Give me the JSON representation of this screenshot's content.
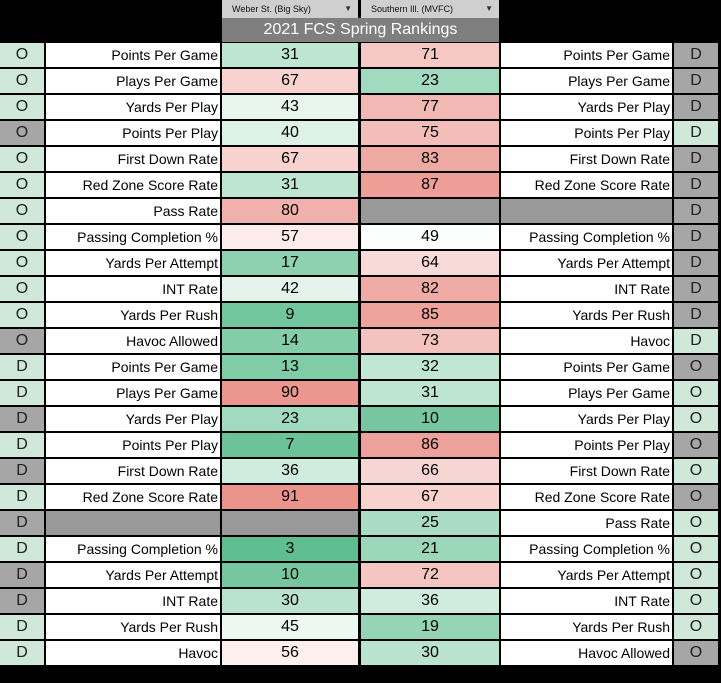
{
  "header": {
    "left_team": "Weber St. (Big Sky)",
    "right_team": "Southern Ill. (MVFC)",
    "title": "2021 FCS Spring Rankings",
    "dropdown_icon": "triangle-down-icon"
  },
  "colors": {
    "side_green": "#cfe8da",
    "side_grey": "#a6a6a6",
    "blank_grey": "#999999",
    "good_green": "#57bb8a",
    "bad_red": "#e67c73",
    "neutral": "#ffffff"
  },
  "rows": [
    {
      "ls": "O",
      "lsg": false,
      "ll": "Points Per Game",
      "lv": "31",
      "rv": "71",
      "rl": "Points Per Game",
      "rs": "D",
      "rsg": true
    },
    {
      "ls": "O",
      "lsg": false,
      "ll": "Plays Per Game",
      "lv": "67",
      "rv": "23",
      "rl": "Plays Per Game",
      "rs": "D",
      "rsg": true
    },
    {
      "ls": "O",
      "lsg": false,
      "ll": "Yards Per Play",
      "lv": "43",
      "rv": "77",
      "rl": "Yards Per Play",
      "rs": "D",
      "rsg": true
    },
    {
      "ls": "O",
      "lsg": true,
      "ll": "Points Per Play",
      "lv": "40",
      "rv": "75",
      "rl": "Points Per Play",
      "rs": "D",
      "rsg": false
    },
    {
      "ls": "O",
      "lsg": false,
      "ll": "First Down Rate",
      "lv": "67",
      "rv": "83",
      "rl": "First Down Rate",
      "rs": "D",
      "rsg": true
    },
    {
      "ls": "O",
      "lsg": false,
      "ll": "Red Zone Score Rate",
      "lv": "31",
      "rv": "87",
      "rl": "Red Zone Score Rate",
      "rs": "D",
      "rsg": true
    },
    {
      "ls": "O",
      "lsg": false,
      "ll": "Pass Rate",
      "lv": "80",
      "rv": "",
      "rl": "",
      "rs": "D",
      "rsg": true
    },
    {
      "ls": "O",
      "lsg": false,
      "ll": "Passing Completion %",
      "lv": "57",
      "rv": "49",
      "rl": "Passing Completion %",
      "rs": "D",
      "rsg": true
    },
    {
      "ls": "O",
      "lsg": false,
      "ll": "Yards Per Attempt",
      "lv": "17",
      "rv": "64",
      "rl": "Yards Per Attempt",
      "rs": "D",
      "rsg": true
    },
    {
      "ls": "O",
      "lsg": false,
      "ll": "INT Rate",
      "lv": "42",
      "rv": "82",
      "rl": "INT Rate",
      "rs": "D",
      "rsg": true
    },
    {
      "ls": "O",
      "lsg": false,
      "ll": "Yards Per Rush",
      "lv": "9",
      "rv": "85",
      "rl": "Yards Per Rush",
      "rs": "D",
      "rsg": true
    },
    {
      "ls": "O",
      "lsg": true,
      "ll": "Havoc Allowed",
      "lv": "14",
      "rv": "73",
      "rl": "Havoc",
      "rs": "D",
      "rsg": false
    },
    {
      "ls": "D",
      "lsg": false,
      "ll": "Points Per Game",
      "lv": "13",
      "rv": "32",
      "rl": "Points Per Game",
      "rs": "O",
      "rsg": true
    },
    {
      "ls": "D",
      "lsg": false,
      "ll": "Plays Per Game",
      "lv": "90",
      "rv": "31",
      "rl": "Plays Per Game",
      "rs": "O",
      "rsg": false
    },
    {
      "ls": "D",
      "lsg": true,
      "ll": "Yards Per Play",
      "lv": "23",
      "rv": "10",
      "rl": "Yards Per Play",
      "rs": "O",
      "rsg": false
    },
    {
      "ls": "D",
      "lsg": false,
      "ll": "Points Per Play",
      "lv": "7",
      "rv": "86",
      "rl": "Points Per Play",
      "rs": "O",
      "rsg": true
    },
    {
      "ls": "D",
      "lsg": true,
      "ll": "First Down Rate",
      "lv": "36",
      "rv": "66",
      "rl": "First Down Rate",
      "rs": "O",
      "rsg": false
    },
    {
      "ls": "D",
      "lsg": false,
      "ll": "Red Zone Score Rate",
      "lv": "91",
      "rv": "67",
      "rl": "Red Zone Score Rate",
      "rs": "O",
      "rsg": true
    },
    {
      "ls": "D",
      "lsg": true,
      "ll": "",
      "lv": "",
      "rv": "25",
      "rl": "Pass Rate",
      "rs": "O",
      "rsg": false
    },
    {
      "ls": "D",
      "lsg": false,
      "ll": "Passing Completion %",
      "lv": "3",
      "rv": "21",
      "rl": "Passing Completion %",
      "rs": "O",
      "rsg": false
    },
    {
      "ls": "D",
      "lsg": true,
      "ll": "Yards Per Attempt",
      "lv": "10",
      "rv": "72",
      "rl": "Yards Per Attempt",
      "rs": "O",
      "rsg": false
    },
    {
      "ls": "D",
      "lsg": true,
      "ll": "INT Rate",
      "lv": "30",
      "rv": "36",
      "rl": "INT Rate",
      "rs": "O",
      "rsg": false
    },
    {
      "ls": "D",
      "lsg": false,
      "ll": "Yards Per Rush",
      "lv": "45",
      "rv": "19",
      "rl": "Yards Per Rush",
      "rs": "O",
      "rsg": false
    },
    {
      "ls": "D",
      "lsg": false,
      "ll": "Havoc",
      "lv": "56",
      "rv": "30",
      "rl": "Havoc Allowed",
      "rs": "O",
      "rsg": true
    }
  ]
}
